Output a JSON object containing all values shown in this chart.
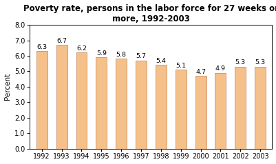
{
  "title": "Poverty rate, persons in the labor force for 27 weeks or\nmore, 1992-2003",
  "years": [
    1992,
    1993,
    1994,
    1995,
    1996,
    1997,
    1998,
    1999,
    2000,
    2001,
    2002,
    2003
  ],
  "values": [
    6.3,
    6.7,
    6.2,
    5.9,
    5.8,
    5.7,
    5.4,
    5.1,
    4.7,
    4.9,
    5.3,
    5.3
  ],
  "bar_color": "#F5C08A",
  "bar_edge_color": "#C8906A",
  "ylabel": "Percent",
  "ylim": [
    0.0,
    8.0
  ],
  "yticks": [
    0.0,
    1.0,
    2.0,
    3.0,
    4.0,
    5.0,
    6.0,
    7.0,
    8.0
  ],
  "title_fontsize": 8.5,
  "label_fontsize": 7.5,
  "tick_fontsize": 7.0,
  "bar_label_fontsize": 6.8,
  "background_color": "#ffffff",
  "plot_bg_color": "#ffffff",
  "bar_width": 0.55
}
